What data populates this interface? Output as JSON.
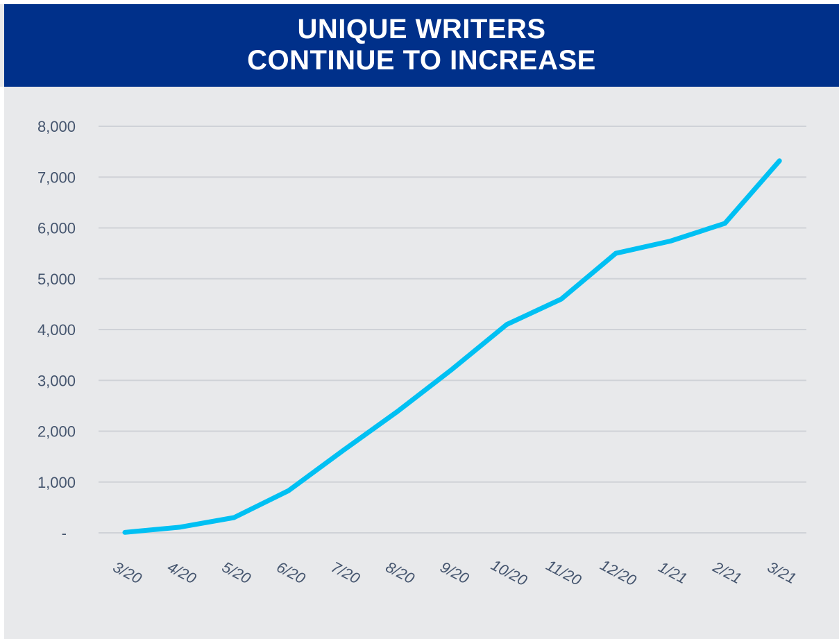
{
  "header": {
    "title_line1": "UNIQUE WRITERS",
    "title_line2": "CONTINUE TO INCREASE"
  },
  "colors": {
    "header_bg": "#00308a",
    "plot_bg": "#e8e9eb",
    "line": "#00c0f3",
    "gridline": "#cfd2d7",
    "tick_text": "#45556e"
  },
  "chart_data": {
    "type": "line",
    "title": "UNIQUE WRITERS CONTINUE TO INCREASE",
    "xlabel": "",
    "ylabel": "",
    "categories": [
      "3/20",
      "4/20",
      "5/20",
      "6/20",
      "7/20",
      "8/20",
      "9/20",
      "10/20",
      "11/20",
      "12/20",
      "1/21",
      "2/21",
      "3/21"
    ],
    "series": [
      {
        "values": [
          10,
          110,
          300,
          830,
          1620,
          2390,
          3220,
          4100,
          4600,
          5500,
          5740,
          6090,
          7320
        ]
      }
    ],
    "y_ticks": [
      {
        "value": 0,
        "label": "-"
      },
      {
        "value": 1000,
        "label": "1,000"
      },
      {
        "value": 2000,
        "label": "2,000"
      },
      {
        "value": 3000,
        "label": "3,000"
      },
      {
        "value": 4000,
        "label": "4,000"
      },
      {
        "value": 5000,
        "label": "5,000"
      },
      {
        "value": 6000,
        "label": "6,000"
      },
      {
        "value": 7000,
        "label": "7,000"
      },
      {
        "value": 8000,
        "label": "8,000"
      }
    ],
    "ylim": [
      0,
      8000
    ],
    "grid": true,
    "legend": "none"
  }
}
